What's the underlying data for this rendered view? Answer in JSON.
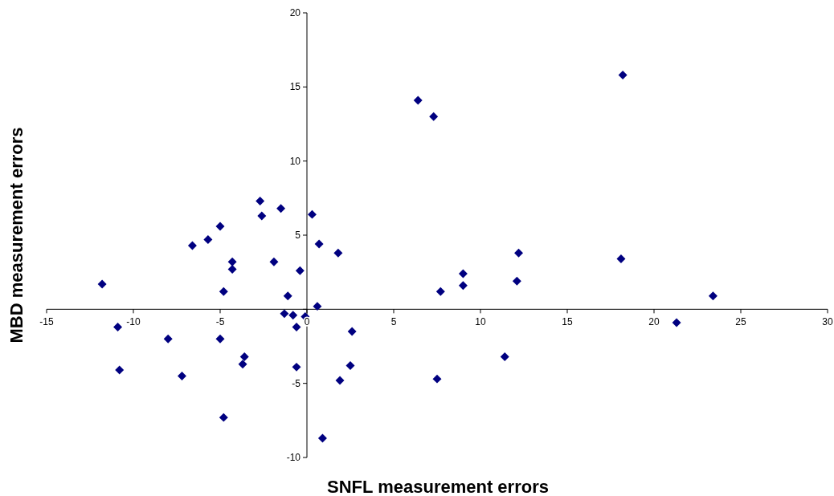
{
  "chart_data": {
    "type": "scatter",
    "xlabel": "SNFL measurement errors",
    "ylabel": "MBD measurement errors",
    "xlim": [
      -15,
      30
    ],
    "xticks": [
      -15,
      -10,
      -5,
      0,
      5,
      10,
      15,
      20,
      25,
      30
    ],
    "ylim": [
      -10,
      20
    ],
    "yticks": [
      -10,
      -5,
      {
        "value": 0,
        "label": null
      },
      5,
      10,
      15,
      20
    ],
    "grid": false,
    "marker": "diamond",
    "series": [
      {
        "color": "#000080",
        "x": [
          -11.8,
          -10.9,
          -10.8,
          -8.0,
          -7.2,
          -6.6,
          -5.7,
          -5.0,
          -5.0,
          -4.8,
          -4.8,
          -4.3,
          -4.3,
          -3.7,
          -3.6,
          -2.7,
          -2.6,
          -1.9,
          -1.5,
          -1.3,
          -1.1,
          -0.8,
          -0.6,
          -0.6,
          -0.4,
          -0.1,
          0.3,
          0.6,
          0.7,
          0.9,
          1.8,
          1.9,
          2.5,
          2.6,
          6.4,
          7.3,
          7.5,
          7.7,
          9.0,
          9.0,
          11.4,
          12.1,
          12.2,
          18.1,
          18.2,
          21.3,
          23.4
        ],
        "values": [
          1.7,
          -1.2,
          -4.1,
          -2.0,
          -4.5,
          4.3,
          4.7,
          5.6,
          -2.0,
          1.2,
          -7.3,
          3.2,
          2.7,
          -3.7,
          -3.2,
          7.3,
          6.3,
          3.2,
          6.8,
          -0.3,
          0.9,
          -0.4,
          -1.2,
          -3.9,
          2.6,
          -0.5,
          6.4,
          0.2,
          4.4,
          -8.7,
          3.8,
          -4.8,
          -3.8,
          -1.5,
          14.1,
          13.0,
          -4.7,
          1.2,
          2.4,
          1.6,
          -3.2,
          1.9,
          3.8,
          3.4,
          15.8,
          -0.9,
          0.9
        ]
      }
    ]
  }
}
